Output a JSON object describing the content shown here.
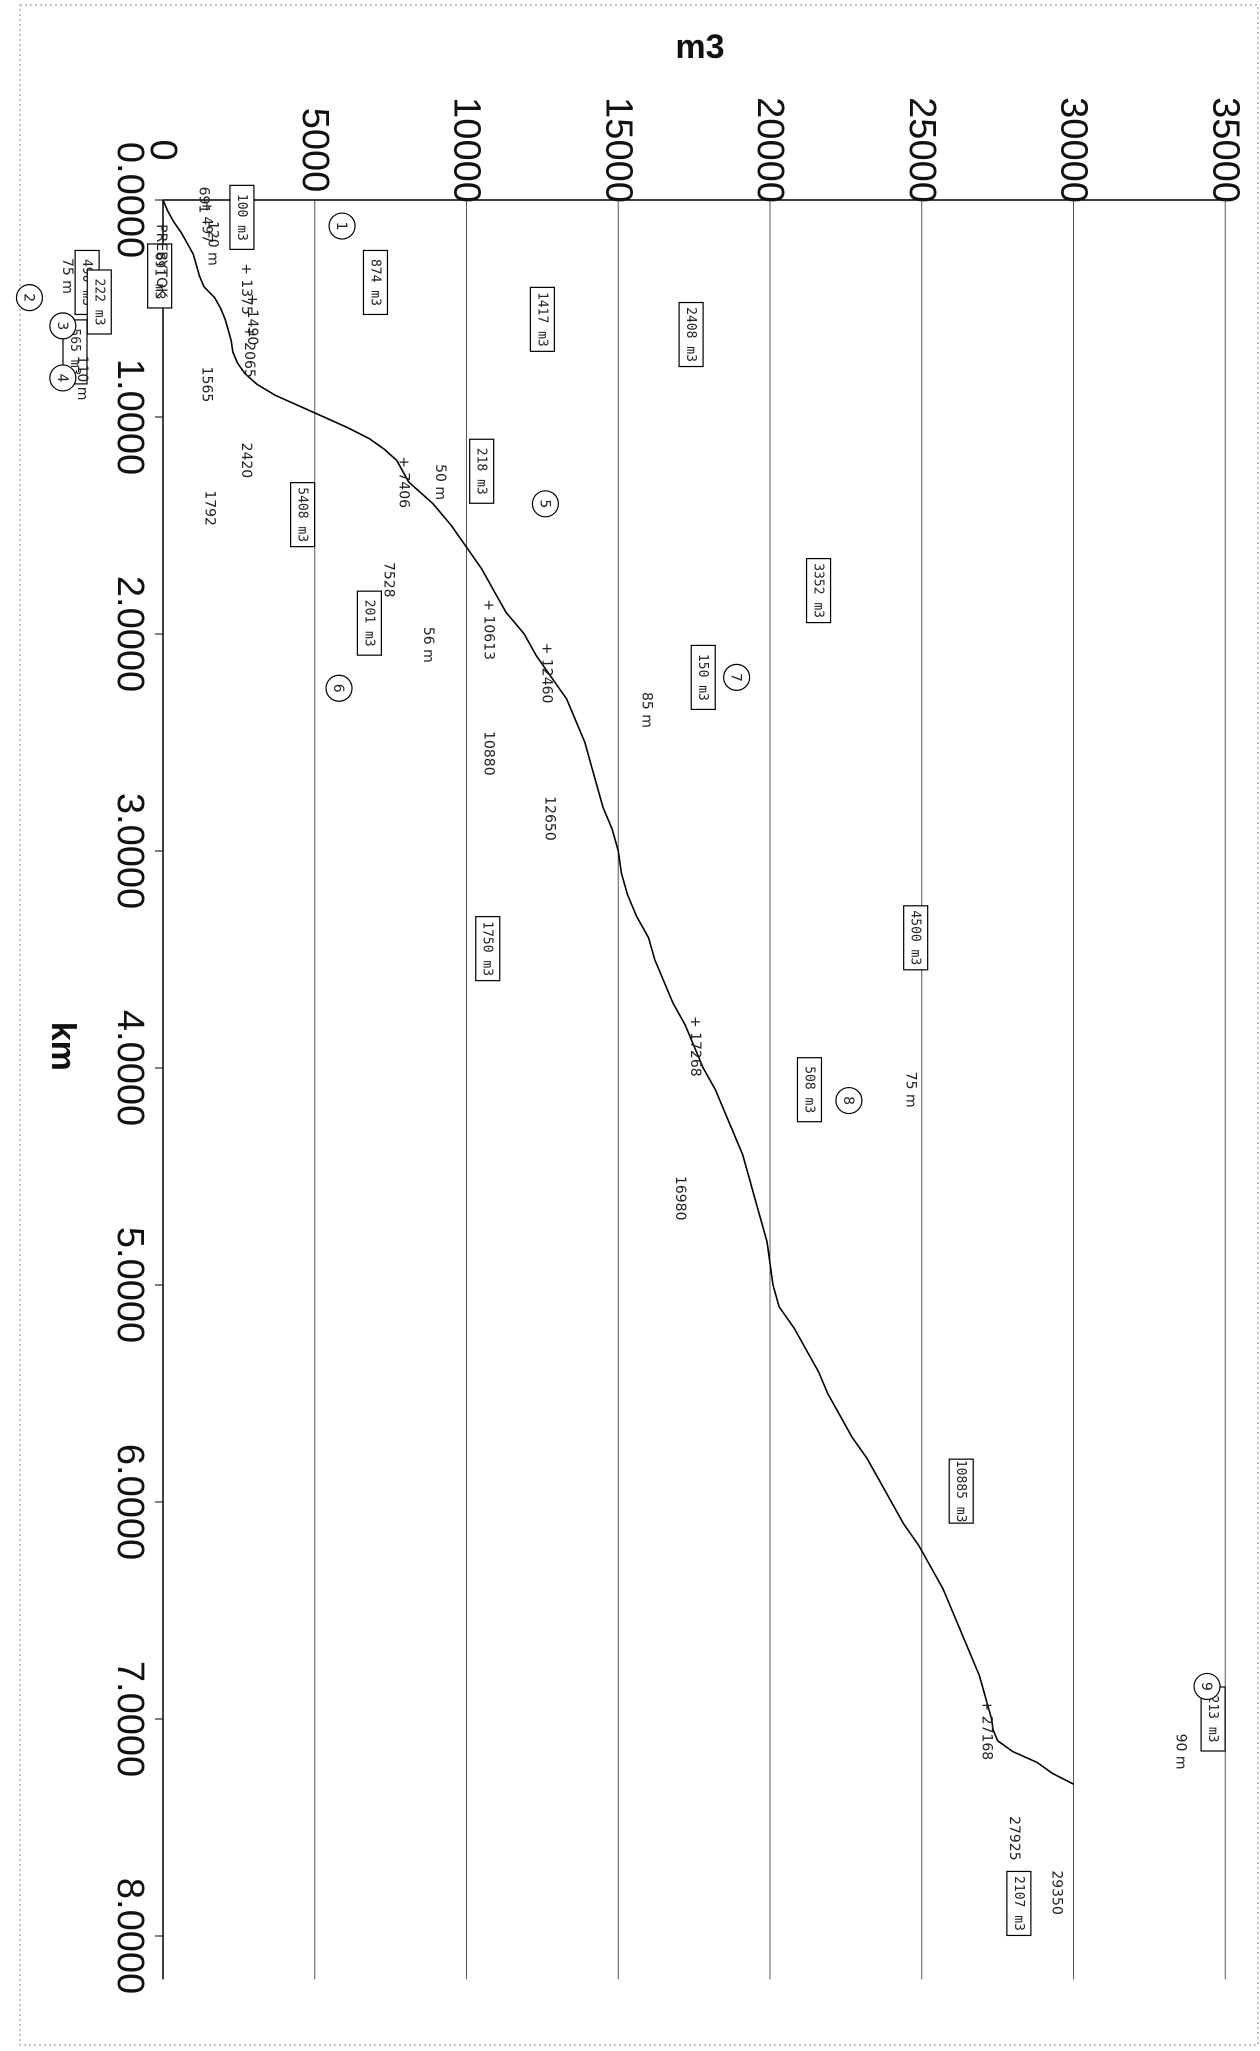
{
  "chart_data": {
    "type": "line",
    "orientation": "rotated 90 degrees clockwise (x axis runs top to bottom)",
    "x_title": "km",
    "y_title": "m3",
    "xlim": [
      0,
      8.2
    ],
    "ylim": [
      0,
      35000
    ],
    "x_ticks": [
      "0.0000",
      "1.0000",
      "2.0000",
      "3.0000",
      "4.0000",
      "5.0000",
      "6.0000",
      "7.0000",
      "8.0000"
    ],
    "y_ticks": [
      "0",
      "5000",
      "10000",
      "15000",
      "20000",
      "25000",
      "30000",
      "35000"
    ],
    "grid": true,
    "series": [
      {
        "x": [
          0,
          0.05,
          0.1,
          0.15,
          0.2,
          0.25,
          0.3,
          0.35,
          0.4,
          0.45,
          0.5,
          0.55,
          0.6,
          0.65,
          0.7,
          0.75,
          0.8,
          0.85,
          0.9,
          0.95,
          1.0,
          1.05,
          1.1,
          1.15,
          1.2,
          1.25,
          1.3,
          1.35,
          1.4,
          1.5,
          1.6,
          1.7,
          1.8,
          1.9,
          2.0,
          2.1,
          2.2,
          2.3,
          2.4,
          2.5,
          2.6,
          2.7,
          2.8,
          2.9,
          3.0,
          3.1,
          3.2,
          3.3,
          3.4,
          3.5,
          3.6,
          3.7,
          3.8,
          3.9,
          4.0,
          4.1,
          4.2,
          4.3,
          4.4,
          4.5,
          4.6,
          4.7,
          4.8,
          4.9,
          5.0,
          5.1,
          5.2,
          5.3,
          5.4,
          5.5,
          5.6,
          5.7,
          5.8,
          5.9,
          6.0,
          6.1,
          6.2,
          6.3,
          6.4,
          6.5,
          6.6,
          6.7,
          6.8,
          6.9,
          7.0,
          7.05,
          7.1,
          7.15,
          7.2,
          7.25,
          7.3
        ],
        "y": [
          0,
          150,
          350,
          600,
          800,
          1000,
          1100,
          1200,
          1350,
          1700,
          1900,
          2050,
          2150,
          2250,
          2300,
          2450,
          2700,
          3100,
          3700,
          4500,
          5300,
          6100,
          6800,
          7300,
          7700,
          7900,
          8100,
          8500,
          8900,
          9500,
          10000,
          10500,
          10900,
          11300,
          11900,
          12300,
          12800,
          13300,
          13600,
          13900,
          14100,
          14300,
          14500,
          14800,
          15000,
          15100,
          15300,
          15600,
          16000,
          16200,
          16500,
          16800,
          17200,
          17500,
          17800,
          18200,
          18500,
          18800,
          19100,
          19300,
          19500,
          19700,
          19900,
          20000,
          20100,
          20300,
          20800,
          21200,
          21600,
          21900,
          22300,
          22700,
          23200,
          23600,
          24000,
          24400,
          24900,
          25300,
          25700,
          26000,
          26300,
          26600,
          26900,
          27100,
          27300,
          27350,
          27500,
          28000,
          28800,
          29300,
          30000
        ]
      }
    ],
    "annotations": {
      "boxes": [
        "691 m3",
        "100 m3",
        "874 m3",
        "1417 m3",
        "2408 m3",
        "490 m3",
        "222 m3",
        "565 m3",
        "218 m3",
        "5408 m3",
        "3352 m3",
        "201 m3",
        "150 m3",
        "4500 m3",
        "1750 m3",
        "508 m3",
        "10885 m3",
        "213 m3",
        "2107 m3"
      ],
      "labels": [
        "PREBYTOK",
        "+ 497",
        "120 m",
        "+ 1375",
        "+ 1490",
        "+ 2065",
        "75 m",
        "110 m",
        "50 m",
        "+ 7406",
        "7528",
        "+ 10613",
        "56 m",
        "+ 12460",
        "85 m",
        "10880",
        "12650",
        "+ 17268",
        "75 m",
        "16980",
        "+ 27168",
        "90 m",
        "27925",
        "29350",
        "1565",
        "2420",
        "1792",
        "691"
      ],
      "circles": [
        "1",
        "2",
        "3",
        "4",
        "5",
        "6",
        "7",
        "8",
        "9"
      ]
    }
  }
}
